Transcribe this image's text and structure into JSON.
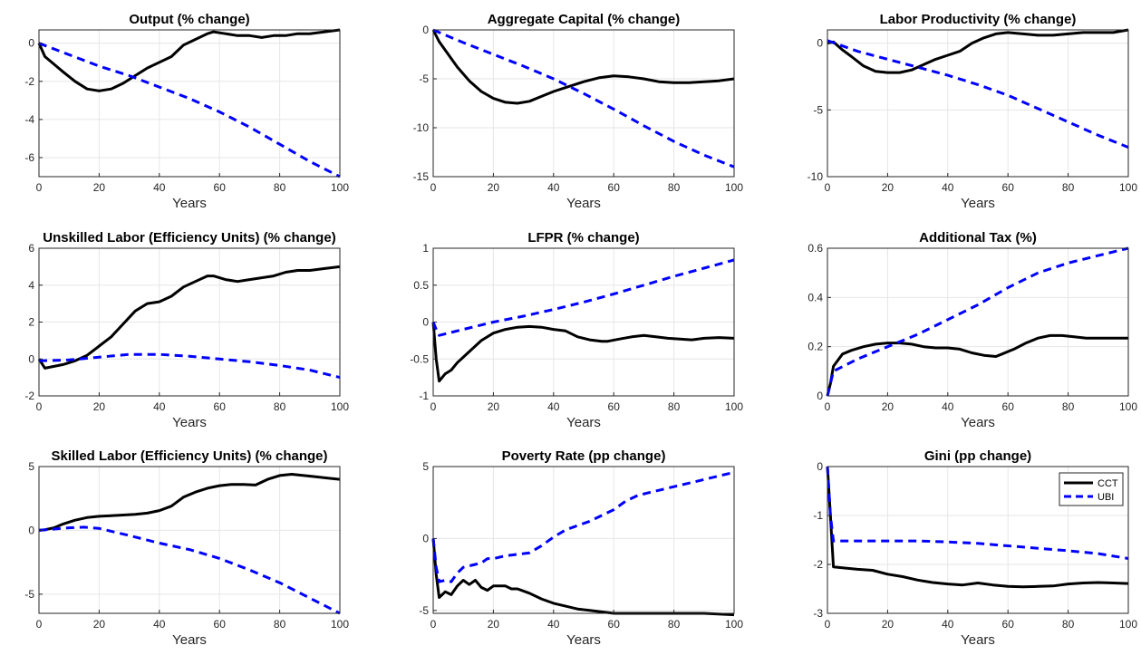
{
  "chart_data": [
    {
      "type": "line",
      "title": "Output (% change)",
      "xlabel": "Years",
      "ylabel": "",
      "xlim": [
        0,
        100
      ],
      "ylim": [
        -7,
        0.7
      ],
      "xticks": [
        0,
        20,
        40,
        60,
        80,
        100
      ],
      "yticks": [
        -6,
        -4,
        -2,
        0
      ],
      "grid": true,
      "series": [
        {
          "name": "CCT",
          "color": "#000000",
          "style": "solid",
          "x": [
            0,
            2,
            5,
            8,
            12,
            16,
            20,
            24,
            28,
            32,
            36,
            40,
            44,
            48,
            52,
            56,
            58,
            62,
            66,
            70,
            74,
            78,
            82,
            86,
            90,
            95,
            100
          ],
          "y": [
            0,
            -0.7,
            -1.1,
            -1.5,
            -2.0,
            -2.4,
            -2.5,
            -2.4,
            -2.1,
            -1.7,
            -1.3,
            -1.0,
            -0.7,
            -0.1,
            0.2,
            0.5,
            0.6,
            0.5,
            0.4,
            0.4,
            0.3,
            0.4,
            0.4,
            0.5,
            0.5,
            0.6,
            0.7
          ]
        },
        {
          "name": "UBI",
          "color": "#0000ff",
          "style": "dashed",
          "x": [
            0,
            10,
            20,
            30,
            40,
            50,
            60,
            70,
            80,
            90,
            100
          ],
          "y": [
            0,
            -0.6,
            -1.2,
            -1.7,
            -2.3,
            -2.9,
            -3.6,
            -4.4,
            -5.3,
            -6.2,
            -7.0
          ]
        }
      ]
    },
    {
      "type": "line",
      "title": "Aggregate Capital (% change)",
      "xlabel": "Years",
      "ylabel": "",
      "xlim": [
        0,
        100
      ],
      "ylim": [
        -15,
        0
      ],
      "xticks": [
        0,
        20,
        40,
        60,
        80,
        100
      ],
      "yticks": [
        -15,
        -10,
        -5,
        0
      ],
      "grid": true,
      "series": [
        {
          "name": "CCT",
          "color": "#000000",
          "style": "solid",
          "x": [
            0,
            2,
            5,
            8,
            12,
            16,
            20,
            24,
            28,
            32,
            36,
            40,
            45,
            50,
            55,
            60,
            65,
            70,
            75,
            80,
            85,
            90,
            95,
            100
          ],
          "y": [
            0,
            -1.2,
            -2.5,
            -3.8,
            -5.2,
            -6.3,
            -7.0,
            -7.4,
            -7.5,
            -7.3,
            -6.8,
            -6.3,
            -5.8,
            -5.3,
            -4.9,
            -4.7,
            -4.8,
            -5.0,
            -5.3,
            -5.4,
            -5.4,
            -5.3,
            -5.2,
            -5.0
          ]
        },
        {
          "name": "UBI",
          "color": "#0000ff",
          "style": "dashed",
          "x": [
            0,
            10,
            20,
            30,
            40,
            50,
            60,
            70,
            80,
            90,
            100
          ],
          "y": [
            0,
            -1.3,
            -2.5,
            -3.7,
            -5.0,
            -6.5,
            -8.1,
            -9.8,
            -11.4,
            -12.8,
            -14.0
          ]
        }
      ]
    },
    {
      "type": "line",
      "title": "Labor Productivity (% change)",
      "xlabel": "Years",
      "ylabel": "",
      "xlim": [
        0,
        100
      ],
      "ylim": [
        -10,
        1
      ],
      "xticks": [
        0,
        20,
        40,
        60,
        80,
        100
      ],
      "yticks": [
        -10,
        -5,
        0
      ],
      "grid": true,
      "series": [
        {
          "name": "CCT",
          "color": "#000000",
          "style": "solid",
          "x": [
            0,
            2,
            5,
            8,
            12,
            16,
            20,
            24,
            28,
            32,
            36,
            40,
            44,
            48,
            52,
            56,
            60,
            65,
            70,
            75,
            80,
            85,
            90,
            95,
            100
          ],
          "y": [
            0,
            0.1,
            -0.5,
            -1.0,
            -1.7,
            -2.1,
            -2.2,
            -2.2,
            -2.0,
            -1.6,
            -1.2,
            -0.9,
            -0.6,
            0,
            0.4,
            0.7,
            0.8,
            0.7,
            0.6,
            0.6,
            0.7,
            0.8,
            0.8,
            0.8,
            1.0
          ]
        },
        {
          "name": "UBI",
          "color": "#0000ff",
          "style": "dashed",
          "x": [
            0,
            10,
            20,
            30,
            40,
            50,
            60,
            70,
            80,
            90,
            100
          ],
          "y": [
            0.2,
            -0.6,
            -1.2,
            -1.8,
            -2.4,
            -3.1,
            -3.9,
            -4.9,
            -5.9,
            -6.9,
            -7.8
          ]
        }
      ]
    },
    {
      "type": "line",
      "title": "Unskilled Labor (Efficiency Units) (% change)",
      "xlabel": "Years",
      "ylabel": "",
      "xlim": [
        0,
        100
      ],
      "ylim": [
        -2,
        6
      ],
      "xticks": [
        0,
        20,
        40,
        60,
        80,
        100
      ],
      "yticks": [
        -2,
        0,
        2,
        4,
        6
      ],
      "grid": true,
      "series": [
        {
          "name": "CCT",
          "color": "#000000",
          "style": "solid",
          "x": [
            0,
            2,
            5,
            8,
            12,
            16,
            20,
            24,
            28,
            32,
            36,
            40,
            44,
            48,
            52,
            56,
            58,
            62,
            66,
            70,
            74,
            78,
            82,
            86,
            90,
            95,
            100
          ],
          "y": [
            0,
            -0.5,
            -0.4,
            -0.3,
            -0.1,
            0.2,
            0.7,
            1.2,
            1.9,
            2.6,
            3.0,
            3.1,
            3.4,
            3.9,
            4.2,
            4.5,
            4.5,
            4.3,
            4.2,
            4.3,
            4.4,
            4.5,
            4.7,
            4.8,
            4.8,
            4.9,
            5.0
          ]
        },
        {
          "name": "UBI",
          "color": "#0000ff",
          "style": "dashed",
          "x": [
            0,
            10,
            20,
            30,
            40,
            50,
            60,
            70,
            80,
            90,
            100
          ],
          "y": [
            -0.1,
            -0.05,
            0.1,
            0.25,
            0.25,
            0.15,
            0.0,
            -0.15,
            -0.35,
            -0.6,
            -1.0
          ]
        }
      ]
    },
    {
      "type": "line",
      "title": "LFPR (% change)",
      "xlabel": "Years",
      "ylabel": "",
      "xlim": [
        0,
        100
      ],
      "ylim": [
        -1,
        1
      ],
      "xticks": [
        0,
        20,
        40,
        60,
        80,
        100
      ],
      "yticks": [
        -1,
        -0.5,
        0,
        0.5,
        1
      ],
      "grid": true,
      "series": [
        {
          "name": "CCT",
          "color": "#000000",
          "style": "solid",
          "x": [
            0,
            1,
            2,
            4,
            6,
            8,
            12,
            16,
            20,
            24,
            28,
            32,
            36,
            40,
            44,
            48,
            52,
            56,
            58,
            62,
            66,
            70,
            74,
            78,
            82,
            86,
            90,
            95,
            100
          ],
          "y": [
            0,
            -0.5,
            -0.8,
            -0.7,
            -0.65,
            -0.55,
            -0.4,
            -0.25,
            -0.15,
            -0.1,
            -0.07,
            -0.06,
            -0.07,
            -0.1,
            -0.12,
            -0.2,
            -0.24,
            -0.26,
            -0.26,
            -0.23,
            -0.2,
            -0.18,
            -0.2,
            -0.22,
            -0.23,
            -0.24,
            -0.22,
            -0.21,
            -0.22
          ]
        },
        {
          "name": "UBI",
          "color": "#0000ff",
          "style": "dashed",
          "x": [
            0,
            1,
            2,
            10,
            20,
            30,
            40,
            50,
            60,
            70,
            80,
            90,
            100
          ],
          "y": [
            0,
            -0.1,
            -0.18,
            -0.1,
            0.0,
            0.08,
            0.17,
            0.27,
            0.38,
            0.5,
            0.62,
            0.73,
            0.84
          ]
        }
      ]
    },
    {
      "type": "line",
      "title": "Additional Tax (%)",
      "xlabel": "Years",
      "ylabel": "",
      "xlim": [
        0,
        100
      ],
      "ylim": [
        0,
        0.6
      ],
      "xticks": [
        0,
        20,
        40,
        60,
        80,
        100
      ],
      "yticks": [
        0,
        0.2,
        0.4,
        0.6
      ],
      "grid": true,
      "series": [
        {
          "name": "CCT",
          "color": "#000000",
          "style": "solid",
          "x": [
            0,
            1,
            2,
            5,
            8,
            12,
            16,
            20,
            24,
            28,
            32,
            36,
            40,
            44,
            48,
            52,
            56,
            58,
            62,
            66,
            70,
            74,
            78,
            82,
            86,
            90,
            95,
            100
          ],
          "y": [
            0,
            0.05,
            0.12,
            0.17,
            0.185,
            0.2,
            0.21,
            0.215,
            0.215,
            0.21,
            0.2,
            0.195,
            0.195,
            0.19,
            0.175,
            0.165,
            0.16,
            0.17,
            0.19,
            0.215,
            0.235,
            0.245,
            0.245,
            0.24,
            0.235,
            0.235,
            0.235,
            0.235
          ]
        },
        {
          "name": "UBI",
          "color": "#0000ff",
          "style": "dashed",
          "x": [
            0,
            1,
            2,
            10,
            20,
            30,
            40,
            50,
            60,
            70,
            80,
            90,
            100
          ],
          "y": [
            0,
            0.05,
            0.1,
            0.15,
            0.2,
            0.25,
            0.31,
            0.37,
            0.44,
            0.5,
            0.54,
            0.57,
            0.6
          ]
        }
      ]
    },
    {
      "type": "line",
      "title": "Skilled Labor (Efficiency Units) (% change)",
      "xlabel": "Years",
      "ylabel": "",
      "xlim": [
        0,
        100
      ],
      "ylim": [
        -6.5,
        5
      ],
      "xticks": [
        0,
        20,
        40,
        60,
        80,
        100
      ],
      "yticks": [
        -5,
        0,
        5
      ],
      "grid": true,
      "series": [
        {
          "name": "CCT",
          "color": "#000000",
          "style": "solid",
          "x": [
            0,
            2,
            5,
            8,
            12,
            16,
            20,
            24,
            28,
            32,
            36,
            40,
            44,
            48,
            52,
            56,
            60,
            64,
            68,
            72,
            76,
            80,
            84,
            88,
            92,
            96,
            100
          ],
          "y": [
            0,
            0.05,
            0.2,
            0.5,
            0.8,
            1.0,
            1.1,
            1.15,
            1.2,
            1.25,
            1.35,
            1.55,
            1.9,
            2.6,
            3.0,
            3.3,
            3.5,
            3.6,
            3.6,
            3.55,
            4.0,
            4.3,
            4.4,
            4.3,
            4.2,
            4.1,
            4.0
          ]
        },
        {
          "name": "UBI",
          "color": "#0000ff",
          "style": "dashed",
          "x": [
            0,
            10,
            15,
            20,
            30,
            40,
            50,
            60,
            70,
            80,
            90,
            100
          ],
          "y": [
            0,
            0.2,
            0.25,
            0.15,
            -0.4,
            -1.0,
            -1.5,
            -2.2,
            -3.1,
            -4.1,
            -5.3,
            -6.5
          ]
        }
      ]
    },
    {
      "type": "line",
      "title": "Poverty Rate (pp change)",
      "xlabel": "Years",
      "ylabel": "",
      "xlim": [
        0,
        100
      ],
      "ylim": [
        -5.2,
        5
      ],
      "xticks": [
        0,
        20,
        40,
        60,
        80,
        100
      ],
      "yticks": [
        -5,
        0,
        5
      ],
      "grid": true,
      "series": [
        {
          "name": "CCT",
          "color": "#000000",
          "style": "solid",
          "x": [
            0,
            1,
            2,
            4,
            6,
            8,
            10,
            12,
            14,
            16,
            18,
            20,
            24,
            26,
            28,
            32,
            36,
            40,
            44,
            48,
            52,
            56,
            60,
            70,
            80,
            90,
            100
          ],
          "y": [
            0,
            -2.5,
            -4.1,
            -3.7,
            -3.9,
            -3.3,
            -2.9,
            -3.2,
            -2.9,
            -3.4,
            -3.6,
            -3.3,
            -3.3,
            -3.5,
            -3.5,
            -3.8,
            -4.2,
            -4.5,
            -4.7,
            -4.9,
            -5.0,
            -5.1,
            -5.2,
            -5.2,
            -5.2,
            -5.2,
            -5.3
          ]
        },
        {
          "name": "UBI",
          "color": "#0000ff",
          "style": "dashed",
          "x": [
            0,
            1,
            2,
            4,
            6,
            8,
            10,
            12,
            14,
            16,
            18,
            20,
            24,
            28,
            32,
            36,
            40,
            44,
            48,
            52,
            56,
            60,
            64,
            68,
            72,
            76,
            80,
            84,
            88,
            92,
            96,
            100
          ],
          "y": [
            0,
            -2,
            -3.0,
            -2.9,
            -3.0,
            -2.4,
            -2.0,
            -1.9,
            -1.8,
            -1.7,
            -1.4,
            -1.4,
            -1.2,
            -1.1,
            -1.0,
            -0.5,
            0.1,
            0.6,
            0.9,
            1.2,
            1.6,
            2.0,
            2.6,
            3.0,
            3.2,
            3.4,
            3.6,
            3.8,
            4.0,
            4.2,
            4.4,
            4.6
          ]
        }
      ]
    },
    {
      "type": "line",
      "title": "Gini (pp change)",
      "xlabel": "Years",
      "ylabel": "",
      "xlim": [
        0,
        100
      ],
      "ylim": [
        -3,
        0
      ],
      "xticks": [
        0,
        20,
        40,
        60,
        80,
        100
      ],
      "yticks": [
        -3,
        -2,
        -1,
        0
      ],
      "grid": true,
      "legend_position": "top-right",
      "series": [
        {
          "name": "CCT",
          "color": "#000000",
          "style": "solid",
          "x": [
            0,
            1,
            2,
            5,
            10,
            15,
            20,
            25,
            30,
            35,
            40,
            45,
            50,
            55,
            60,
            65,
            70,
            75,
            80,
            85,
            90,
            95,
            100
          ],
          "y": [
            0,
            -1.0,
            -2.05,
            -2.07,
            -2.1,
            -2.12,
            -2.2,
            -2.25,
            -2.32,
            -2.37,
            -2.4,
            -2.42,
            -2.38,
            -2.42,
            -2.45,
            -2.46,
            -2.45,
            -2.44,
            -2.4,
            -2.38,
            -2.37,
            -2.38,
            -2.39
          ]
        },
        {
          "name": "UBI",
          "color": "#0000ff",
          "style": "dashed",
          "x": [
            0,
            1,
            2,
            10,
            20,
            30,
            40,
            50,
            60,
            70,
            80,
            90,
            100
          ],
          "y": [
            0,
            -1.0,
            -1.52,
            -1.52,
            -1.52,
            -1.52,
            -1.54,
            -1.57,
            -1.62,
            -1.67,
            -1.72,
            -1.78,
            -1.88
          ]
        }
      ]
    }
  ]
}
